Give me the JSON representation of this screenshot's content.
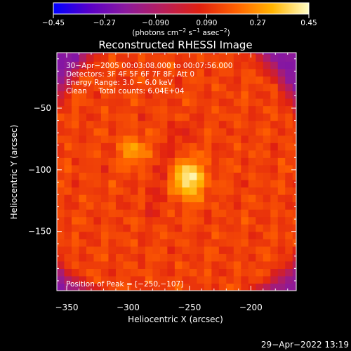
{
  "chart_data": {
    "type": "heatmap",
    "title": "Reconstructed RHESSI Image",
    "xlabel": "Heliocentric X (arcsec)",
    "ylabel": "Heliocentric Y (arcsec)",
    "xlim": [
      -358,
      -163
    ],
    "ylim": [
      -198,
      -5
    ],
    "x_ticks": [
      -350,
      -300,
      -250,
      -200
    ],
    "x_tick_labels": [
      "−350",
      "−300",
      "−250",
      "−200"
    ],
    "y_ticks": [
      -50,
      -100,
      -150
    ],
    "y_tick_labels": [
      "−50",
      "−100",
      "−150"
    ],
    "colorbar": {
      "range": [
        -0.45,
        0.45
      ],
      "ticks": [
        -0.45,
        -0.27,
        -0.09,
        0.09,
        0.27,
        0.45
      ],
      "tick_labels": [
        "−0.45",
        "−0.27",
        "−0.090",
        "0.090",
        "0.27",
        "0.45"
      ],
      "unit_parts": [
        "(photons cm",
        "−2",
        " s",
        "−1",
        " asec",
        "−2",
        ")"
      ],
      "colors": [
        "#0000ff",
        "#5a00c8",
        "#8c1a9c",
        "#b81e5a",
        "#e02010",
        "#ff6000",
        "#ffb400",
        "#ffffc8"
      ]
    },
    "info_lines": [
      "30−Apr−2005 00:03:08.000 to 00:07:56.000",
      "Detectors: 3F 4F 5F 6F 7F 8F, Att 0",
      "Energy Range: 3.0 − 6.0 keV",
      "Clean     Total counts: 6.04E+04"
    ],
    "peak_label": "Position of Peak = [−250,−107]",
    "peak_position": [
      -250,
      -107
    ],
    "sources": [
      {
        "x": -251,
        "y": -107,
        "peak": 0.45
      },
      {
        "x": -296,
        "y": -84,
        "peak": 0.3
      }
    ],
    "disk_background": 0.13,
    "outside_value": -0.2
  },
  "footer_timestamp": "29−Apr−2022 13:19"
}
